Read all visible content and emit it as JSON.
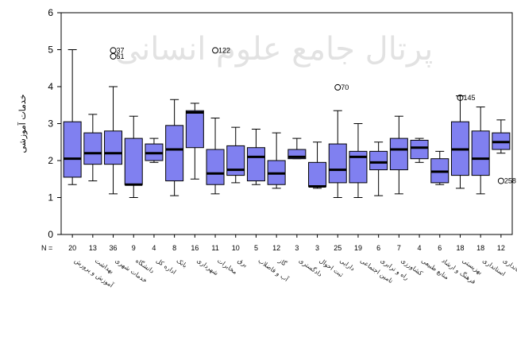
{
  "chart_data": {
    "type": "box",
    "ylabel": "خدمات آموزشی",
    "ylim": [
      0,
      6
    ],
    "yticks": [
      0,
      1,
      2,
      3,
      4,
      5,
      6
    ],
    "n_prefix": "N =",
    "watermark": "پرتال جامع علوم انسانی",
    "categories": [
      "آموزش و پرورش",
      "بهداشت",
      "خدمات شهری",
      "دانشگاه",
      "اداره کل",
      "بانک",
      "شهرداری",
      "مخابرات",
      "برق",
      "آب و فاضلاب",
      "گاز",
      "دادگستری",
      "ثبت احوال",
      "دارایی",
      "تامین اجتماعی",
      "راه و ترابری",
      "کشاورزی",
      "منابع طبیعی",
      "فرهنگ و ارشاد",
      "بهزیستی",
      "استانداری",
      "فرمانداری"
    ],
    "n": [
      20,
      13,
      36,
      9,
      4,
      8,
      16,
      11,
      10,
      5,
      12,
      3,
      3,
      25,
      19,
      6,
      7,
      4,
      6,
      18,
      18,
      12
    ],
    "boxes": [
      {
        "min": 1.35,
        "q1": 1.55,
        "median": 2.05,
        "q3": 3.05,
        "max": 5.0
      },
      {
        "min": 1.45,
        "q1": 1.9,
        "median": 2.2,
        "q3": 2.75,
        "max": 3.25
      },
      {
        "min": 1.1,
        "q1": 1.9,
        "median": 2.2,
        "q3": 2.8,
        "max": 4.0
      },
      {
        "min": 1.0,
        "q1": 1.35,
        "median": 1.35,
        "q3": 2.6,
        "max": 3.2
      },
      {
        "min": 1.95,
        "q1": 2.0,
        "median": 2.2,
        "q3": 2.45,
        "max": 2.6
      },
      {
        "min": 1.05,
        "q1": 1.45,
        "median": 2.3,
        "q3": 2.95,
        "max": 3.65
      },
      {
        "min": 1.5,
        "q1": 2.35,
        "median": 3.3,
        "q3": 3.35,
        "max": 3.55
      },
      {
        "min": 1.1,
        "q1": 1.35,
        "median": 1.65,
        "q3": 2.3,
        "max": 3.15
      },
      {
        "min": 1.4,
        "q1": 1.6,
        "median": 1.75,
        "q3": 2.4,
        "max": 2.9
      },
      {
        "min": 1.35,
        "q1": 1.45,
        "median": 2.1,
        "q3": 2.35,
        "max": 2.85
      },
      {
        "min": 1.25,
        "q1": 1.35,
        "median": 1.65,
        "q3": 2.0,
        "max": 2.75
      },
      {
        "min": 2.05,
        "q1": 2.05,
        "median": 2.1,
        "q3": 2.3,
        "max": 2.6
      },
      {
        "min": 1.25,
        "q1": 1.3,
        "median": 1.3,
        "q3": 1.95,
        "max": 2.5
      },
      {
        "min": 1.0,
        "q1": 1.4,
        "median": 1.75,
        "q3": 2.45,
        "max": 3.35
      },
      {
        "min": 1.0,
        "q1": 1.4,
        "median": 2.1,
        "q3": 2.25,
        "max": 3.0
      },
      {
        "min": 1.05,
        "q1": 1.75,
        "median": 1.95,
        "q3": 2.25,
        "max": 2.5
      },
      {
        "min": 1.1,
        "q1": 1.75,
        "median": 2.3,
        "q3": 2.6,
        "max": 3.2
      },
      {
        "min": 1.95,
        "q1": 2.05,
        "median": 2.35,
        "q3": 2.55,
        "max": 2.6
      },
      {
        "min": 1.35,
        "q1": 1.4,
        "median": 1.7,
        "q3": 2.05,
        "max": 2.25
      },
      {
        "min": 1.25,
        "q1": 1.6,
        "median": 2.3,
        "q3": 3.05,
        "max": 3.75
      },
      {
        "min": 1.1,
        "q1": 1.6,
        "median": 2.05,
        "q3": 2.8,
        "max": 3.45
      },
      {
        "min": 2.2,
        "q1": 2.3,
        "median": 2.5,
        "q3": 2.75,
        "max": 3.1
      }
    ],
    "outliers": [
      {
        "group": 2,
        "value": 4.98,
        "label": "37"
      },
      {
        "group": 2,
        "value": 4.82,
        "label": "51"
      },
      {
        "group": 7,
        "value": 4.98,
        "label": "122"
      },
      {
        "group": 13,
        "value": 3.98,
        "label": "70"
      },
      {
        "group": 19,
        "value": 3.7,
        "label": "145"
      },
      {
        "group": 21,
        "value": 1.45,
        "label": "258"
      }
    ],
    "colors": {
      "box_fill": "#8080f0",
      "box_stroke": "#000000"
    }
  }
}
